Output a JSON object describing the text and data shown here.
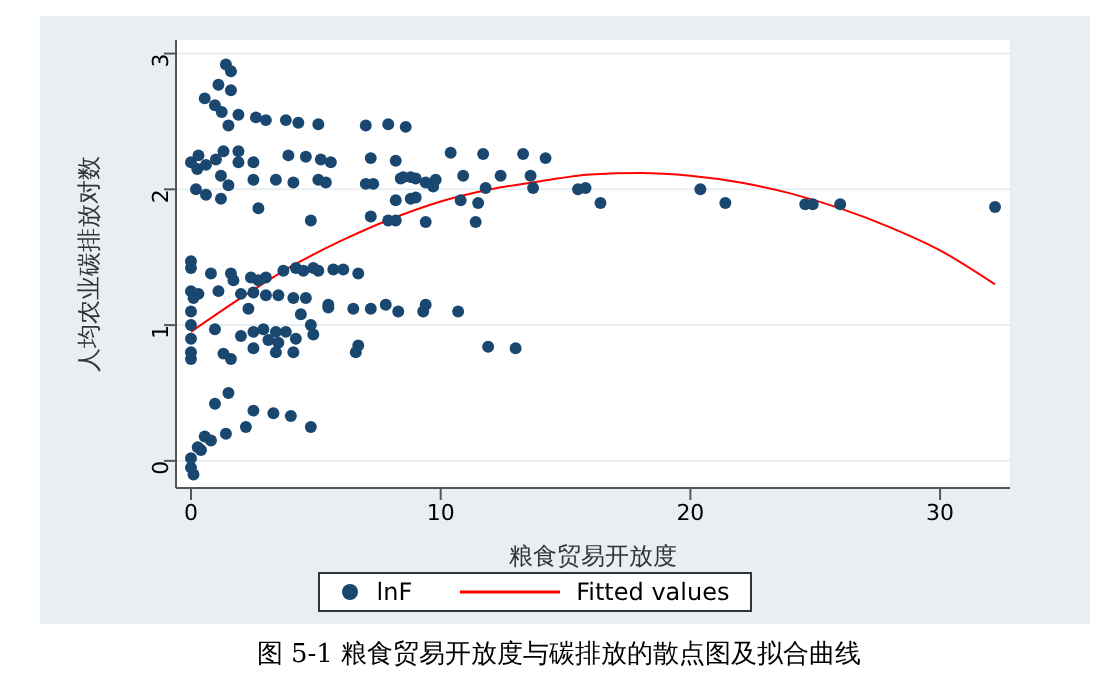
{
  "chart_data": {
    "type": "scatter",
    "xlabel": "粮食贸易开放度",
    "ylabel": "人均农业碳排放对数",
    "xlim": [
      -0.6,
      32.8
    ],
    "ylim": [
      -0.2,
      3.1
    ],
    "xticks": [
      0,
      10,
      20,
      30
    ],
    "yticks": [
      0,
      1,
      2,
      3
    ],
    "grid": "y",
    "legend": "bottom",
    "marker": "circle",
    "annotations": [
      "图  5-1   粮食贸易开放度与碳排放的散点图及拟合曲线"
    ],
    "series": [
      {
        "name": "lnF",
        "color": "#1a476f",
        "x": [
          1.4,
          1.6,
          1.1,
          1.6,
          0.55,
          0.96,
          1.23,
          1.9,
          2.6,
          3.0,
          3.8,
          4.3,
          5.1,
          1.5,
          7.0,
          7.9,
          8.6,
          0,
          0.3,
          0.6,
          1.0,
          1.3,
          1.9,
          1.9,
          2.5,
          3.9,
          4.6,
          5.2,
          5.6,
          7.2,
          8.2,
          0.25,
          1.2,
          1.5,
          2.5,
          3.4,
          4.1,
          5.1,
          5.4,
          7.0,
          7.3,
          8.4,
          9.0,
          0.2,
          0.6,
          1.2,
          2.7,
          8.2,
          9.0,
          7.2,
          7.9,
          8.2,
          4.8,
          0,
          0,
          0.8,
          1.6,
          1.7,
          2.4,
          2.7,
          3.0,
          3.7,
          4.2,
          4.5,
          4.9,
          5.1,
          5.7,
          6.1,
          6.7,
          0,
          0.3,
          0.1,
          1.1,
          2.0,
          2.5,
          3.0,
          3.5,
          4.1,
          4.6,
          5.5,
          2.3,
          4.4,
          5.5,
          6.5,
          7.2,
          7.8,
          8.3,
          0,
          0,
          0,
          0,
          0,
          0.96,
          2.5,
          2.9,
          3.4,
          3.8,
          4.8,
          2.0,
          3.1,
          3.5,
          4.2,
          4.9,
          1.3,
          1.6,
          2.5,
          3.4,
          4.1,
          6.7,
          6.6,
          1.5,
          0.96,
          2.5,
          3.3,
          4.0,
          4.8,
          2.2,
          1.4,
          0.55,
          0.27,
          0.1,
          0.8,
          0.4,
          0,
          0,
          8.5,
          8.8,
          9.4,
          9.7,
          9.8,
          8.8,
          9.4,
          10.4,
          11.7,
          10.9,
          10.8,
          11.5,
          11.4,
          11.8,
          12.4,
          13.3,
          13.6,
          13.7,
          14.2,
          15.5,
          15.8,
          16.4,
          20.4,
          21.4,
          24.6,
          24.9,
          26.0,
          32.2,
          9.3,
          9.4,
          10.7,
          11.9,
          13.0
        ],
        "values": [
          2.92,
          2.87,
          2.77,
          2.73,
          2.67,
          2.62,
          2.57,
          2.55,
          2.53,
          2.51,
          2.51,
          2.49,
          2.48,
          2.47,
          2.47,
          2.48,
          2.46,
          2.2,
          2.25,
          2.18,
          2.22,
          2.28,
          2.28,
          2.2,
          2.2,
          2.25,
          2.24,
          2.22,
          2.2,
          2.23,
          2.21,
          2.15,
          2.1,
          2.03,
          2.07,
          2.07,
          2.05,
          2.07,
          2.05,
          2.04,
          2.04,
          2.08,
          2.08,
          2.0,
          1.96,
          1.93,
          1.86,
          1.92,
          1.94,
          1.8,
          1.77,
          1.77,
          1.77,
          1.47,
          1.42,
          1.38,
          1.38,
          1.33,
          1.35,
          1.33,
          1.35,
          1.4,
          1.42,
          1.4,
          1.42,
          1.4,
          1.41,
          1.41,
          1.38,
          1.25,
          1.23,
          1.2,
          1.25,
          1.23,
          1.24,
          1.22,
          1.22,
          1.2,
          1.2,
          1.15,
          1.12,
          1.08,
          1.13,
          1.12,
          1.12,
          1.15,
          1.1,
          1.1,
          1.0,
          0.9,
          0.8,
          0.75,
          0.97,
          0.95,
          0.97,
          0.95,
          0.95,
          1.0,
          0.92,
          0.89,
          0.87,
          0.9,
          0.93,
          0.79,
          0.75,
          0.83,
          0.8,
          0.8,
          0.85,
          0.8,
          0.5,
          0.42,
          0.37,
          0.35,
          0.33,
          0.25,
          0.25,
          0.2,
          0.18,
          0.1,
          -0.1,
          0.15,
          0.08,
          0.02,
          -0.05,
          2.09,
          2.09,
          2.05,
          2.02,
          2.07,
          1.93,
          1.76,
          2.27,
          2.26,
          2.1,
          1.92,
          1.9,
          1.76,
          2.01,
          2.1,
          2.26,
          2.1,
          2.01,
          2.23,
          2.0,
          2.01,
          1.9,
          2.0,
          1.9,
          1.89,
          1.89,
          1.89,
          1.87,
          1.1,
          1.15,
          1.1,
          0.84,
          0.83
        ]
      },
      {
        "name": "Fitted values",
        "type": "line",
        "color": "#ff0000",
        "marker": "none",
        "line_style": "solid",
        "x": [
          0,
          2,
          4,
          6,
          9,
          10,
          12,
          14,
          16,
          18,
          20,
          22,
          24,
          26,
          28,
          30,
          32.2
        ],
        "values": [
          0.95,
          1.2,
          1.43,
          1.62,
          1.85,
          1.91,
          2.0,
          2.06,
          2.11,
          2.12,
          2.1,
          2.05,
          1.97,
          1.86,
          1.72,
          1.55,
          1.3
        ]
      }
    ]
  }
}
